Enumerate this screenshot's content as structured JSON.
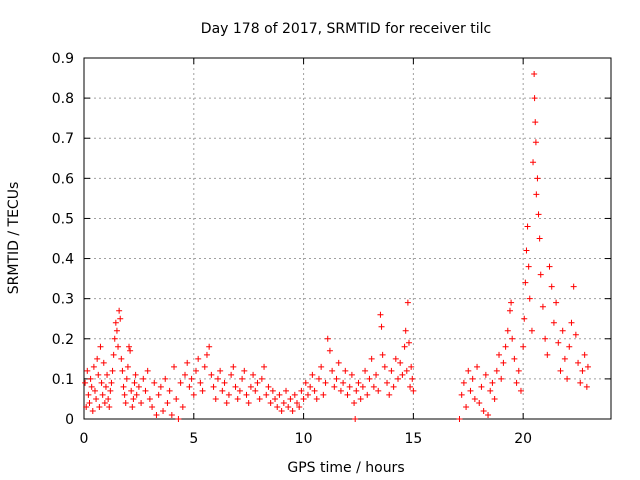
{
  "chart_data": {
    "type": "scatter",
    "title": "Day 178 of 2017, SRMTID for receiver tilc",
    "xlabel": "GPS time / hours",
    "ylabel": "SRMTID / TECUs",
    "xlim": [
      0,
      24
    ],
    "ylim": [
      0,
      0.9
    ],
    "xticks": [
      0,
      5,
      10,
      15,
      20
    ],
    "yticks": [
      0,
      0.1,
      0.2,
      0.3,
      0.4,
      0.5,
      0.6,
      0.7,
      0.8,
      0.9
    ],
    "xtick_labels": [
      "0",
      "5",
      "10",
      "15",
      "20"
    ],
    "ytick_labels": [
      "0",
      "0.1",
      "0.2",
      "0.3",
      "0.4",
      "0.5",
      "0.6",
      "0.7",
      "0.8",
      "0.9"
    ],
    "grid": true,
    "marker": "plus",
    "series": [
      {
        "name": "SRMTID",
        "color": "#ff0000",
        "points": [
          [
            0.05,
            0.09
          ],
          [
            0.1,
            0.03
          ],
          [
            0.15,
            0.12
          ],
          [
            0.2,
            0.06
          ],
          [
            0.25,
            0.04
          ],
          [
            0.3,
            0.1
          ],
          [
            0.35,
            0.08
          ],
          [
            0.4,
            0.02
          ],
          [
            0.45,
            0.13
          ],
          [
            0.5,
            0.07
          ],
          [
            0.55,
            0.05
          ],
          [
            0.6,
            0.15
          ],
          [
            0.65,
            0.11
          ],
          [
            0.7,
            0.03
          ],
          [
            0.75,
            0.18
          ],
          [
            0.8,
            0.09
          ],
          [
            0.85,
            0.06
          ],
          [
            0.9,
            0.14
          ],
          [
            0.95,
            0.04
          ],
          [
            1.0,
            0.08
          ],
          [
            1.05,
            0.11
          ],
          [
            1.1,
            0.05
          ],
          [
            1.15,
            0.03
          ],
          [
            1.2,
            0.07
          ],
          [
            1.25,
            0.09
          ],
          [
            1.3,
            0.12
          ],
          [
            1.35,
            0.16
          ],
          [
            1.4,
            0.2
          ],
          [
            1.45,
            0.24
          ],
          [
            1.5,
            0.22
          ],
          [
            1.55,
            0.18
          ],
          [
            1.6,
            0.27
          ],
          [
            1.65,
            0.25
          ],
          [
            1.7,
            0.15
          ],
          [
            1.75,
            0.12
          ],
          [
            1.8,
            0.08
          ],
          [
            1.85,
            0.06
          ],
          [
            1.9,
            0.04
          ],
          [
            1.95,
            0.1
          ],
          [
            2.0,
            0.13
          ],
          [
            2.05,
            0.18
          ],
          [
            2.1,
            0.17
          ],
          [
            2.15,
            0.07
          ],
          [
            2.2,
            0.03
          ],
          [
            2.25,
            0.05
          ],
          [
            2.3,
            0.09
          ],
          [
            2.35,
            0.11
          ],
          [
            2.4,
            0.06
          ],
          [
            2.5,
            0.08
          ],
          [
            2.6,
            0.04
          ],
          [
            2.7,
            0.1
          ],
          [
            2.8,
            0.07
          ],
          [
            2.9,
            0.12
          ],
          [
            3.0,
            0.05
          ],
          [
            3.1,
            0.03
          ],
          [
            3.2,
            0.09
          ],
          [
            3.3,
            0.01
          ],
          [
            3.4,
            0.06
          ],
          [
            3.5,
            0.08
          ],
          [
            3.6,
            0.02
          ],
          [
            3.7,
            0.1
          ],
          [
            3.8,
            0.04
          ],
          [
            3.9,
            0.07
          ],
          [
            4.0,
            0.01
          ],
          [
            4.1,
            0.13
          ],
          [
            4.2,
            0.05
          ],
          [
            4.3,
            0.0
          ],
          [
            4.4,
            0.09
          ],
          [
            4.5,
            0.03
          ],
          [
            4.6,
            0.11
          ],
          [
            4.7,
            0.14
          ],
          [
            4.8,
            0.08
          ],
          [
            4.9,
            0.1
          ],
          [
            5.0,
            0.06
          ],
          [
            5.1,
            0.12
          ],
          [
            5.2,
            0.15
          ],
          [
            5.3,
            0.09
          ],
          [
            5.4,
            0.07
          ],
          [
            5.5,
            0.13
          ],
          [
            5.6,
            0.16
          ],
          [
            5.7,
            0.18
          ],
          [
            5.8,
            0.11
          ],
          [
            5.9,
            0.08
          ],
          [
            6.0,
            0.05
          ],
          [
            6.1,
            0.1
          ],
          [
            6.2,
            0.12
          ],
          [
            6.3,
            0.07
          ],
          [
            6.4,
            0.09
          ],
          [
            6.5,
            0.04
          ],
          [
            6.6,
            0.06
          ],
          [
            6.7,
            0.11
          ],
          [
            6.8,
            0.13
          ],
          [
            6.9,
            0.08
          ],
          [
            7.0,
            0.05
          ],
          [
            7.1,
            0.07
          ],
          [
            7.2,
            0.1
          ],
          [
            7.3,
            0.12
          ],
          [
            7.4,
            0.06
          ],
          [
            7.5,
            0.04
          ],
          [
            7.6,
            0.08
          ],
          [
            7.7,
            0.11
          ],
          [
            7.8,
            0.07
          ],
          [
            7.9,
            0.09
          ],
          [
            8.0,
            0.05
          ],
          [
            8.1,
            0.1
          ],
          [
            8.2,
            0.13
          ],
          [
            8.3,
            0.06
          ],
          [
            8.4,
            0.08
          ],
          [
            8.5,
            0.04
          ],
          [
            8.6,
            0.07
          ],
          [
            8.7,
            0.05
          ],
          [
            8.8,
            0.03
          ],
          [
            8.9,
            0.06
          ],
          [
            9.0,
            0.02
          ],
          [
            9.1,
            0.04
          ],
          [
            9.2,
            0.07
          ],
          [
            9.3,
            0.03
          ],
          [
            9.4,
            0.05
          ],
          [
            9.5,
            0.02
          ],
          [
            9.6,
            0.06
          ],
          [
            9.7,
            0.04
          ],
          [
            9.8,
            0.03
          ],
          [
            9.9,
            0.07
          ],
          [
            10.0,
            0.05
          ],
          [
            10.1,
            0.09
          ],
          [
            10.2,
            0.06
          ],
          [
            10.3,
            0.08
          ],
          [
            10.4,
            0.11
          ],
          [
            10.5,
            0.07
          ],
          [
            10.6,
            0.05
          ],
          [
            10.7,
            0.1
          ],
          [
            10.8,
            0.13
          ],
          [
            10.9,
            0.06
          ],
          [
            11.0,
            0.09
          ],
          [
            11.1,
            0.2
          ],
          [
            11.2,
            0.17
          ],
          [
            11.3,
            0.12
          ],
          [
            11.4,
            0.08
          ],
          [
            11.5,
            0.1
          ],
          [
            11.6,
            0.14
          ],
          [
            11.7,
            0.07
          ],
          [
            11.8,
            0.09
          ],
          [
            11.9,
            0.12
          ],
          [
            12.0,
            0.06
          ],
          [
            12.1,
            0.08
          ],
          [
            12.2,
            0.11
          ],
          [
            12.3,
            0.04
          ],
          [
            12.35,
            0.0
          ],
          [
            12.4,
            0.07
          ],
          [
            12.5,
            0.09
          ],
          [
            12.6,
            0.05
          ],
          [
            12.7,
            0.08
          ],
          [
            12.8,
            0.12
          ],
          [
            12.9,
            0.06
          ],
          [
            13.0,
            0.1
          ],
          [
            13.1,
            0.15
          ],
          [
            13.2,
            0.08
          ],
          [
            13.3,
            0.11
          ],
          [
            13.4,
            0.07
          ],
          [
            13.5,
            0.26
          ],
          [
            13.55,
            0.23
          ],
          [
            13.6,
            0.16
          ],
          [
            13.7,
            0.13
          ],
          [
            13.8,
            0.09
          ],
          [
            13.9,
            0.06
          ],
          [
            14.0,
            0.12
          ],
          [
            14.1,
            0.08
          ],
          [
            14.2,
            0.15
          ],
          [
            14.3,
            0.1
          ],
          [
            14.4,
            0.14
          ],
          [
            14.5,
            0.11
          ],
          [
            14.6,
            0.18
          ],
          [
            14.65,
            0.22
          ],
          [
            14.7,
            0.12
          ],
          [
            14.75,
            0.29
          ],
          [
            14.8,
            0.19
          ],
          [
            14.85,
            0.08
          ],
          [
            14.9,
            0.13
          ],
          [
            14.95,
            0.1
          ],
          [
            15.0,
            0.07
          ],
          [
            17.1,
            0.0
          ],
          [
            17.2,
            0.06
          ],
          [
            17.3,
            0.09
          ],
          [
            17.4,
            0.03
          ],
          [
            17.5,
            0.12
          ],
          [
            17.6,
            0.07
          ],
          [
            17.7,
            0.1
          ],
          [
            17.8,
            0.05
          ],
          [
            17.9,
            0.13
          ],
          [
            18.0,
            0.04
          ],
          [
            18.1,
            0.08
          ],
          [
            18.2,
            0.02
          ],
          [
            18.3,
            0.11
          ],
          [
            18.4,
            0.01
          ],
          [
            18.5,
            0.07
          ],
          [
            18.6,
            0.09
          ],
          [
            18.7,
            0.05
          ],
          [
            18.8,
            0.12
          ],
          [
            18.9,
            0.16
          ],
          [
            19.0,
            0.1
          ],
          [
            19.1,
            0.14
          ],
          [
            19.2,
            0.18
          ],
          [
            19.3,
            0.22
          ],
          [
            19.4,
            0.27
          ],
          [
            19.45,
            0.29
          ],
          [
            19.5,
            0.2
          ],
          [
            19.6,
            0.15
          ],
          [
            19.7,
            0.09
          ],
          [
            19.8,
            0.12
          ],
          [
            19.9,
            0.07
          ],
          [
            20.0,
            0.18
          ],
          [
            20.05,
            0.25
          ],
          [
            20.1,
            0.34
          ],
          [
            20.15,
            0.42
          ],
          [
            20.2,
            0.48
          ],
          [
            20.25,
            0.38
          ],
          [
            20.3,
            0.3
          ],
          [
            20.4,
            0.22
          ],
          [
            20.45,
            0.64
          ],
          [
            20.5,
            0.86
          ],
          [
            20.52,
            0.8
          ],
          [
            20.55,
            0.74
          ],
          [
            20.58,
            0.69
          ],
          [
            20.6,
            0.56
          ],
          [
            20.65,
            0.6
          ],
          [
            20.7,
            0.51
          ],
          [
            20.75,
            0.45
          ],
          [
            20.8,
            0.36
          ],
          [
            20.9,
            0.28
          ],
          [
            21.0,
            0.2
          ],
          [
            21.1,
            0.16
          ],
          [
            21.2,
            0.38
          ],
          [
            21.3,
            0.33
          ],
          [
            21.4,
            0.24
          ],
          [
            21.5,
            0.29
          ],
          [
            21.6,
            0.19
          ],
          [
            21.7,
            0.12
          ],
          [
            21.8,
            0.22
          ],
          [
            21.9,
            0.15
          ],
          [
            22.0,
            0.1
          ],
          [
            22.1,
            0.18
          ],
          [
            22.2,
            0.24
          ],
          [
            22.3,
            0.33
          ],
          [
            22.4,
            0.21
          ],
          [
            22.5,
            0.14
          ],
          [
            22.6,
            0.09
          ],
          [
            22.7,
            0.12
          ],
          [
            22.8,
            0.16
          ],
          [
            22.9,
            0.08
          ],
          [
            22.95,
            0.13
          ]
        ]
      }
    ]
  }
}
